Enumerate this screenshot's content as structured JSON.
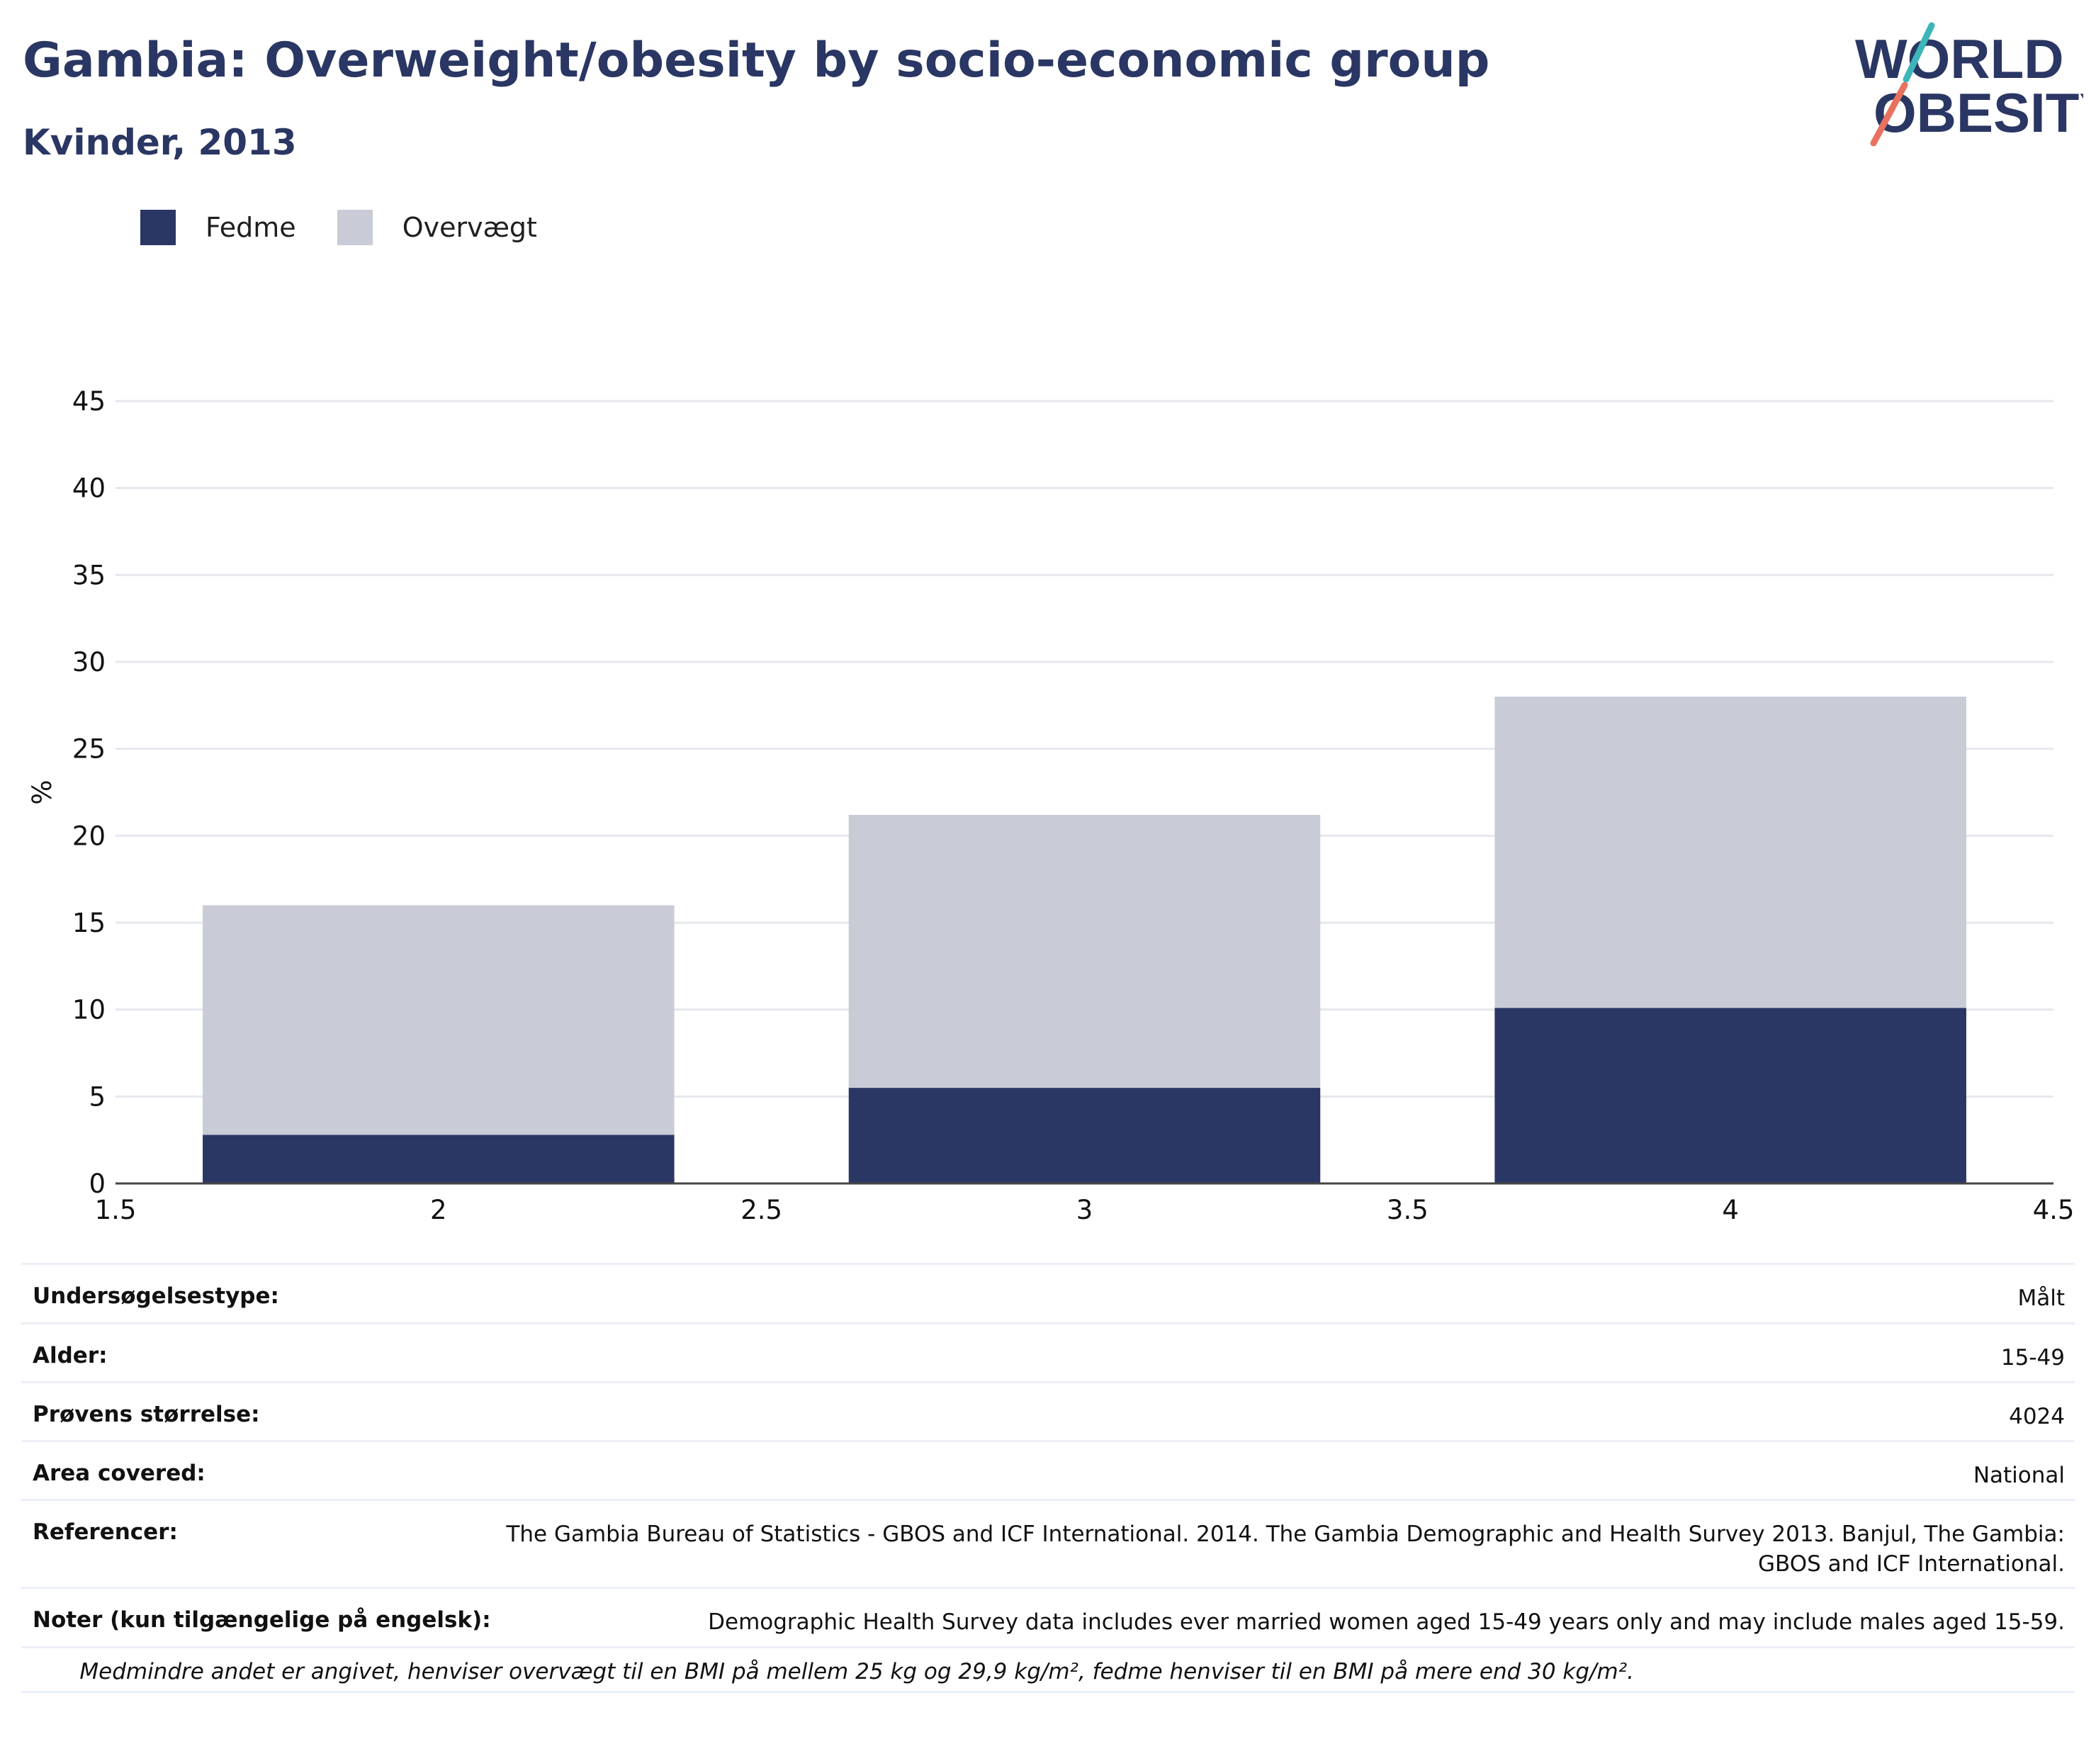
{
  "header": {
    "title": "Gambia: Overweight/obesity by socio-economic group",
    "subtitle": "Kvinder, 2013"
  },
  "logo": {
    "line1": "WORLD",
    "line2": "OBESITY"
  },
  "legend": [
    {
      "label": "Fedme",
      "color": "#2a3663"
    },
    {
      "label": "Overvægt",
      "color": "#c9ccd7"
    }
  ],
  "chart_data": {
    "type": "bar",
    "stacked": true,
    "x": [
      2,
      3,
      4
    ],
    "xlim": [
      1.5,
      4.5
    ],
    "xticks": [
      "1.5",
      "2",
      "2.5",
      "3",
      "3.5",
      "4",
      "4.5"
    ],
    "ylim": [
      0,
      45
    ],
    "yticks": [
      "0",
      "5",
      "10",
      "15",
      "20",
      "25",
      "30",
      "35",
      "40",
      "45"
    ],
    "ylabel": "%",
    "xlabel": "",
    "grid": true,
    "legend_position": "top-left",
    "series": [
      {
        "name": "Fedme",
        "color": "#2a3663",
        "values": [
          2.8,
          5.5,
          10.1
        ]
      },
      {
        "name": "Overvægt",
        "color": "#c9ccd7",
        "values": [
          13.2,
          15.7,
          17.9
        ]
      }
    ]
  },
  "info": {
    "rows": [
      {
        "label": "Undersøgelsestype:",
        "value": "Målt"
      },
      {
        "label": "Alder:",
        "value": "15-49"
      },
      {
        "label": "Prøvens størrelse:",
        "value": "4024"
      },
      {
        "label": "Area covered:",
        "value": "National"
      },
      {
        "label": "Referencer:",
        "value": "The Gambia Bureau of Statistics - GBOS and ICF International. 2014. The Gambia Demographic and Health Survey 2013. Banjul, The Gambia: GBOS and ICF International."
      },
      {
        "label": "Noter (kun tilgængelige på engelsk):",
        "value": "Demographic Health Survey data includes ever married women aged 15-49 years only and may include males aged 15-59."
      }
    ],
    "footnote": "Medmindre andet er angivet, henviser overvægt til en BMI på mellem 25 kg og 29,9 kg/m², fedme henviser til en BMI på mere end 30 kg/m²."
  }
}
